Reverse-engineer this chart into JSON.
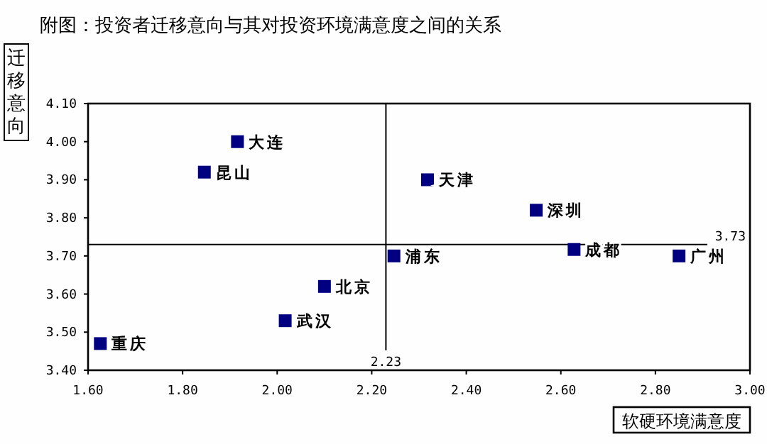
{
  "chart_data": {
    "type": "scatter",
    "title": "附图：投资者迁移意向与其对投资环境满意度之间的关系",
    "xlabel": "软硬环境满意度",
    "ylabel": "迁移意向",
    "series": [
      {
        "color": "#000080",
        "x": [
          1.916,
          1.846,
          2.318,
          2.548,
          2.247,
          2.628,
          2.85,
          2.1,
          2.017,
          1.626
        ],
        "values": [
          4.0,
          3.92,
          3.9,
          3.82,
          3.7,
          3.717,
          3.7,
          3.62,
          3.53,
          3.47
        ]
      }
    ],
    "marker": "square",
    "grid": false,
    "xlim": [
      1.6,
      3.0
    ],
    "xticks": [
      {
        "value": 1.6,
        "label": "1.60"
      },
      {
        "value": 1.8,
        "label": "1.80"
      },
      {
        "value": 2.0,
        "label": "2.00"
      },
      {
        "value": 2.2,
        "label": "2.20"
      },
      {
        "value": 2.4,
        "label": "2.40"
      },
      {
        "value": 2.6,
        "label": "2.60"
      },
      {
        "value": 2.8,
        "label": "2.80"
      },
      {
        "value": 3.0,
        "label": "3.00"
      }
    ],
    "ylim": [
      3.4,
      4.1
    ],
    "yticks": [
      {
        "value": 3.4,
        "label": "3.40"
      },
      {
        "value": 3.5,
        "label": "3.50"
      },
      {
        "value": 3.6,
        "label": "3.60"
      },
      {
        "value": 3.7,
        "label": "3.70"
      },
      {
        "value": 3.8,
        "label": "3.80"
      },
      {
        "value": 3.9,
        "label": "3.90"
      },
      {
        "value": 4.0,
        "label": "4.00"
      },
      {
        "value": 4.1,
        "label": "4.10"
      }
    ],
    "ref_lines": [
      {
        "axis": "x",
        "value": 2.23,
        "label": "2.23",
        "color": "#000000"
      },
      {
        "axis": "y",
        "value": 3.73,
        "label": "3.73",
        "color": "#000000"
      }
    ],
    "annotations": [
      {
        "text": "大连",
        "x": 1.916,
        "y": 4.0
      },
      {
        "text": "昆山",
        "x": 1.846,
        "y": 3.92
      },
      {
        "text": "天津",
        "x": 2.318,
        "y": 3.9
      },
      {
        "text": "深圳",
        "x": 2.548,
        "y": 3.82
      },
      {
        "text": "浦东",
        "x": 2.247,
        "y": 3.7
      },
      {
        "text": "成都",
        "x": 2.628,
        "y": 3.717
      },
      {
        "text": "广州",
        "x": 2.85,
        "y": 3.7
      },
      {
        "text": "北京",
        "x": 2.1,
        "y": 3.62
      },
      {
        "text": "武汉",
        "x": 2.017,
        "y": 3.53
      },
      {
        "text": "重庆",
        "x": 1.626,
        "y": 3.47
      }
    ]
  }
}
